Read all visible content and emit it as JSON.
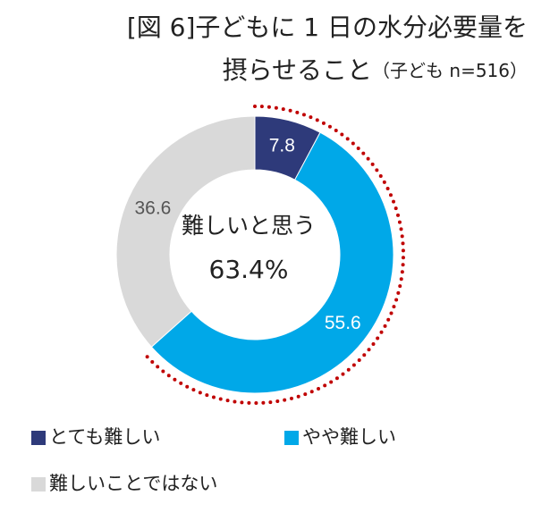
{
  "chart_data": {
    "type": "pie",
    "title": [
      "[図 6]子どもに 1 日の水分必要量を",
      "摂らせること"
    ],
    "subtitle": "（子ども n=516）",
    "center_text": "難しいと思う",
    "center_value": {
      "value": 63.4,
      "label": "63.4%"
    },
    "categories": [
      "とても難しい",
      "やや難しい",
      "難しいことではない"
    ],
    "values": [
      7.8,
      55.6,
      36.6
    ],
    "colors": [
      "#2e3a7a",
      "#00a8e8",
      "#d9d9d9"
    ]
  }
}
